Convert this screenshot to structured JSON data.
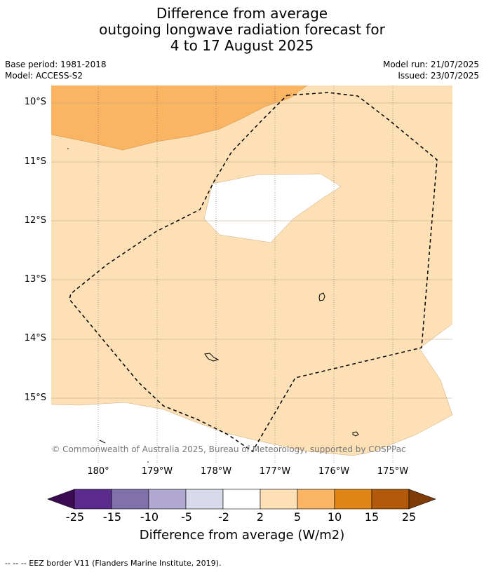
{
  "title": {
    "line1": "Difference from average",
    "line2": "outgoing longwave radiation forecast for",
    "line3": "4 to 17 August 2025"
  },
  "meta": {
    "base_period": "Base period: 1981-2018",
    "model": "Model: ACCESS-S2",
    "model_run": "Model run: 21/07/2025",
    "issued": "Issued: 23/07/2025"
  },
  "map": {
    "latitude_labels": [
      "10°S",
      "11°S",
      "12°S",
      "13°S",
      "14°S",
      "15°S"
    ],
    "longitude_labels": [
      "180°",
      "179°W",
      "178°W",
      "177°W",
      "176°W",
      "175°W"
    ],
    "copyright": "© Commonwealth of Australia 2025, Bureau of Meteorology, supported by COSPPac",
    "colors": {
      "background_positive_2_5": "#fde0b5",
      "positive_5_10": "#fbb461",
      "neutral": "#ffffff"
    }
  },
  "colorbar": {
    "title": "Difference from average (W/m2)",
    "ticks": [
      "-25",
      "-15",
      "-10",
      "-5",
      "-2",
      "2",
      "5",
      "10",
      "15",
      "25"
    ],
    "colors": [
      "#3b0a52",
      "#5a2b8c",
      "#8071ad",
      "#b1a9d2",
      "#d9d9ec",
      "#ffffff",
      "#fde0b5",
      "#fbb461",
      "#e08516",
      "#b25a09",
      "#7f3b08"
    ]
  },
  "footer": {
    "legend_text": "--  --  -- EEZ border V11 (Flanders Marine Institute, 2019)."
  }
}
